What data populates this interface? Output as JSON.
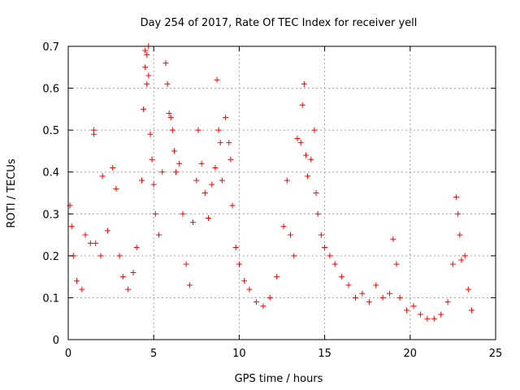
{
  "chart_data": {
    "type": "scatter",
    "title": "Day 254 of 2017, Rate Of TEC Index for receiver yell",
    "xlabel": "GPS time / hours",
    "ylabel": "ROTI / TECUs",
    "xlim": [
      0,
      25
    ],
    "ylim": [
      0,
      0.7
    ],
    "xticks": [
      0,
      5,
      10,
      15,
      20,
      25
    ],
    "yticks": [
      0,
      0.1,
      0.2,
      0.3,
      0.4,
      0.5,
      0.6,
      0.7
    ],
    "xtick_labels": [
      "0",
      "5",
      "10",
      "15",
      "20",
      "25"
    ],
    "ytick_labels": [
      "0",
      "0.1",
      "0.2",
      "0.3",
      "0.4",
      "0.5",
      "0.6",
      "0.7"
    ],
    "grid": true,
    "marker": "+",
    "color": "#ff0000",
    "series": [
      {
        "name": "ROTI",
        "x": [
          0.1,
          0.2,
          0.3,
          0.5,
          0.8,
          1.0,
          1.3,
          1.5,
          1.5,
          1.6,
          1.9,
          2.0,
          2.3,
          2.6,
          2.8,
          3.0,
          3.2,
          3.5,
          3.8,
          4.0,
          4.3,
          4.4,
          4.5,
          4.5,
          4.6,
          4.6,
          4.7,
          4.7,
          4.8,
          4.9,
          5.0,
          5.1,
          5.3,
          5.5,
          5.7,
          5.8,
          5.9,
          6.0,
          6.1,
          6.2,
          6.3,
          6.5,
          6.7,
          6.9,
          7.1,
          7.3,
          7.5,
          7.6,
          7.8,
          8.0,
          8.2,
          8.4,
          8.6,
          8.7,
          8.8,
          8.9,
          9.0,
          9.2,
          9.4,
          9.5,
          9.6,
          9.8,
          10.0,
          10.3,
          10.6,
          11.0,
          11.4,
          11.8,
          12.2,
          12.6,
          12.8,
          13.0,
          13.2,
          13.4,
          13.6,
          13.7,
          13.8,
          13.9,
          14.0,
          14.2,
          14.4,
          14.5,
          14.6,
          14.8,
          15.0,
          15.3,
          15.6,
          16.0,
          16.4,
          16.8,
          17.2,
          17.6,
          18.0,
          18.4,
          18.8,
          19.0,
          19.2,
          19.4,
          19.8,
          20.2,
          20.6,
          21.0,
          21.4,
          21.8,
          22.2,
          22.5,
          22.7,
          22.8,
          22.9,
          23.0,
          23.2,
          23.4,
          23.6
        ],
        "y": [
          0.32,
          0.27,
          0.2,
          0.14,
          0.12,
          0.25,
          0.23,
          0.49,
          0.5,
          0.23,
          0.2,
          0.39,
          0.26,
          0.41,
          0.36,
          0.2,
          0.15,
          0.12,
          0.16,
          0.22,
          0.38,
          0.55,
          0.69,
          0.65,
          0.68,
          0.61,
          0.7,
          0.63,
          0.49,
          0.43,
          0.37,
          0.3,
          0.25,
          0.4,
          0.66,
          0.61,
          0.54,
          0.53,
          0.5,
          0.45,
          0.4,
          0.42,
          0.3,
          0.18,
          0.13,
          0.28,
          0.38,
          0.5,
          0.42,
          0.35,
          0.29,
          0.37,
          0.41,
          0.62,
          0.5,
          0.47,
          0.38,
          0.53,
          0.47,
          0.43,
          0.32,
          0.22,
          0.18,
          0.14,
          0.12,
          0.09,
          0.08,
          0.1,
          0.15,
          0.27,
          0.38,
          0.25,
          0.2,
          0.48,
          0.47,
          0.56,
          0.61,
          0.44,
          0.39,
          0.43,
          0.5,
          0.35,
          0.3,
          0.25,
          0.22,
          0.2,
          0.18,
          0.15,
          0.13,
          0.1,
          0.11,
          0.09,
          0.13,
          0.1,
          0.11,
          0.24,
          0.18,
          0.1,
          0.07,
          0.08,
          0.06,
          0.05,
          0.05,
          0.06,
          0.09,
          0.18,
          0.34,
          0.3,
          0.25,
          0.19,
          0.2,
          0.12,
          0.07
        ]
      }
    ]
  }
}
